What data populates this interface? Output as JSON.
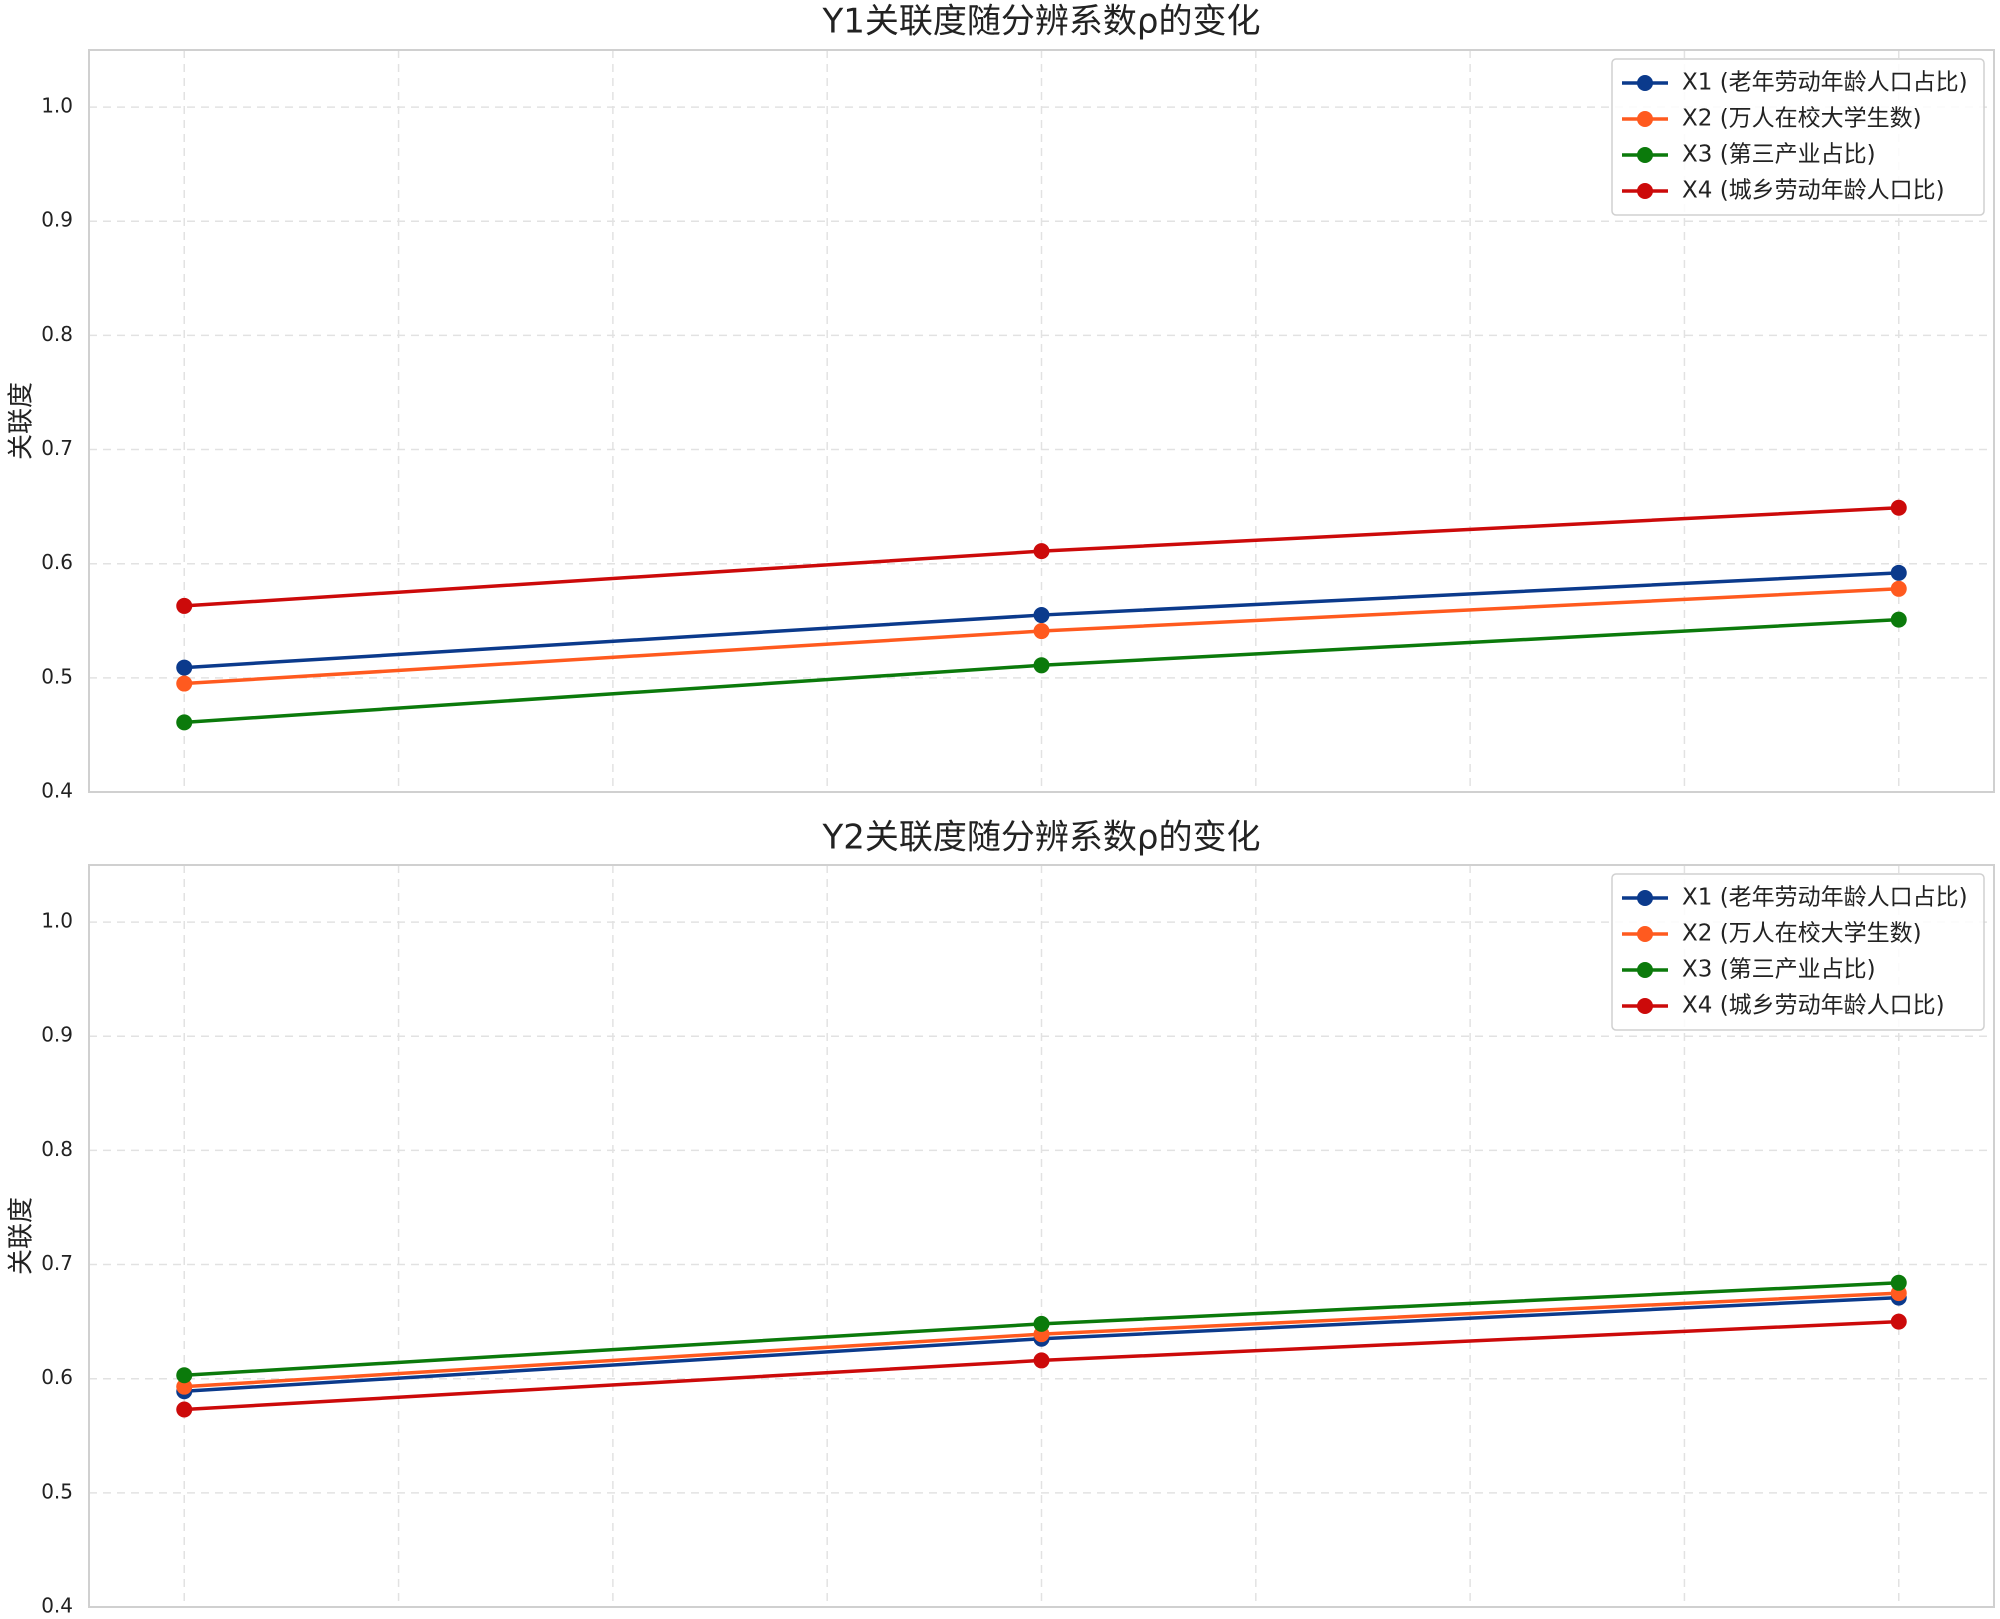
{
  "chart_data": [
    {
      "type": "line",
      "title": "Y1关联度随分辨系数ρ的变化",
      "ylabel": "关联度",
      "categories": [
        null,
        null,
        null
      ],
      "series": [
        {
          "name": "X1 (老年劳动年龄人口占比)",
          "color": "#0b3a8c",
          "values": [
            0.509,
            0.555,
            0.592
          ]
        },
        {
          "name": "X2 (万人在校大学生数)",
          "color": "#ff5a1f",
          "values": [
            0.495,
            0.541,
            0.578
          ]
        },
        {
          "name": "X3 (第三产业占比)",
          "color": "#0b7a0b",
          "values": [
            0.461,
            0.511,
            0.551
          ]
        },
        {
          "name": "X4 (城乡劳动年龄人口比)",
          "color": "#cc0a0a",
          "values": [
            0.563,
            0.611,
            0.649
          ]
        }
      ],
      "ylim": [
        0.4,
        1.05
      ],
      "yticks": [
        0.4,
        0.5,
        0.6,
        0.7,
        0.8,
        0.9,
        {
          "value": 1,
          "label": "1.0"
        }
      ],
      "grid": true,
      "legend": "upper right"
    },
    {
      "type": "line",
      "title": "Y2关联度随分辨系数ρ的变化",
      "ylabel": "关联度",
      "categories": [
        null,
        null,
        null
      ],
      "series": [
        {
          "name": "X1 (老年劳动年龄人口占比)",
          "color": "#0b3a8c",
          "values": [
            0.589,
            0.635,
            0.671
          ]
        },
        {
          "name": "X2 (万人在校大学生数)",
          "color": "#ff5a1f",
          "values": [
            0.593,
            0.639,
            0.675
          ]
        },
        {
          "name": "X3 (第三产业占比)",
          "color": "#0b7a0b",
          "values": [
            0.603,
            0.648,
            0.684
          ]
        },
        {
          "name": "X4 (城乡劳动年龄人口比)",
          "color": "#cc0a0a",
          "values": [
            0.573,
            0.616,
            0.65
          ]
        }
      ],
      "ylim": [
        0.4,
        1.05
      ],
      "yticks": [
        0.4,
        0.5,
        0.6,
        0.7,
        0.8,
        0.9,
        {
          "value": 1,
          "label": "1.0"
        }
      ],
      "grid": true,
      "legend": "upper right"
    }
  ]
}
